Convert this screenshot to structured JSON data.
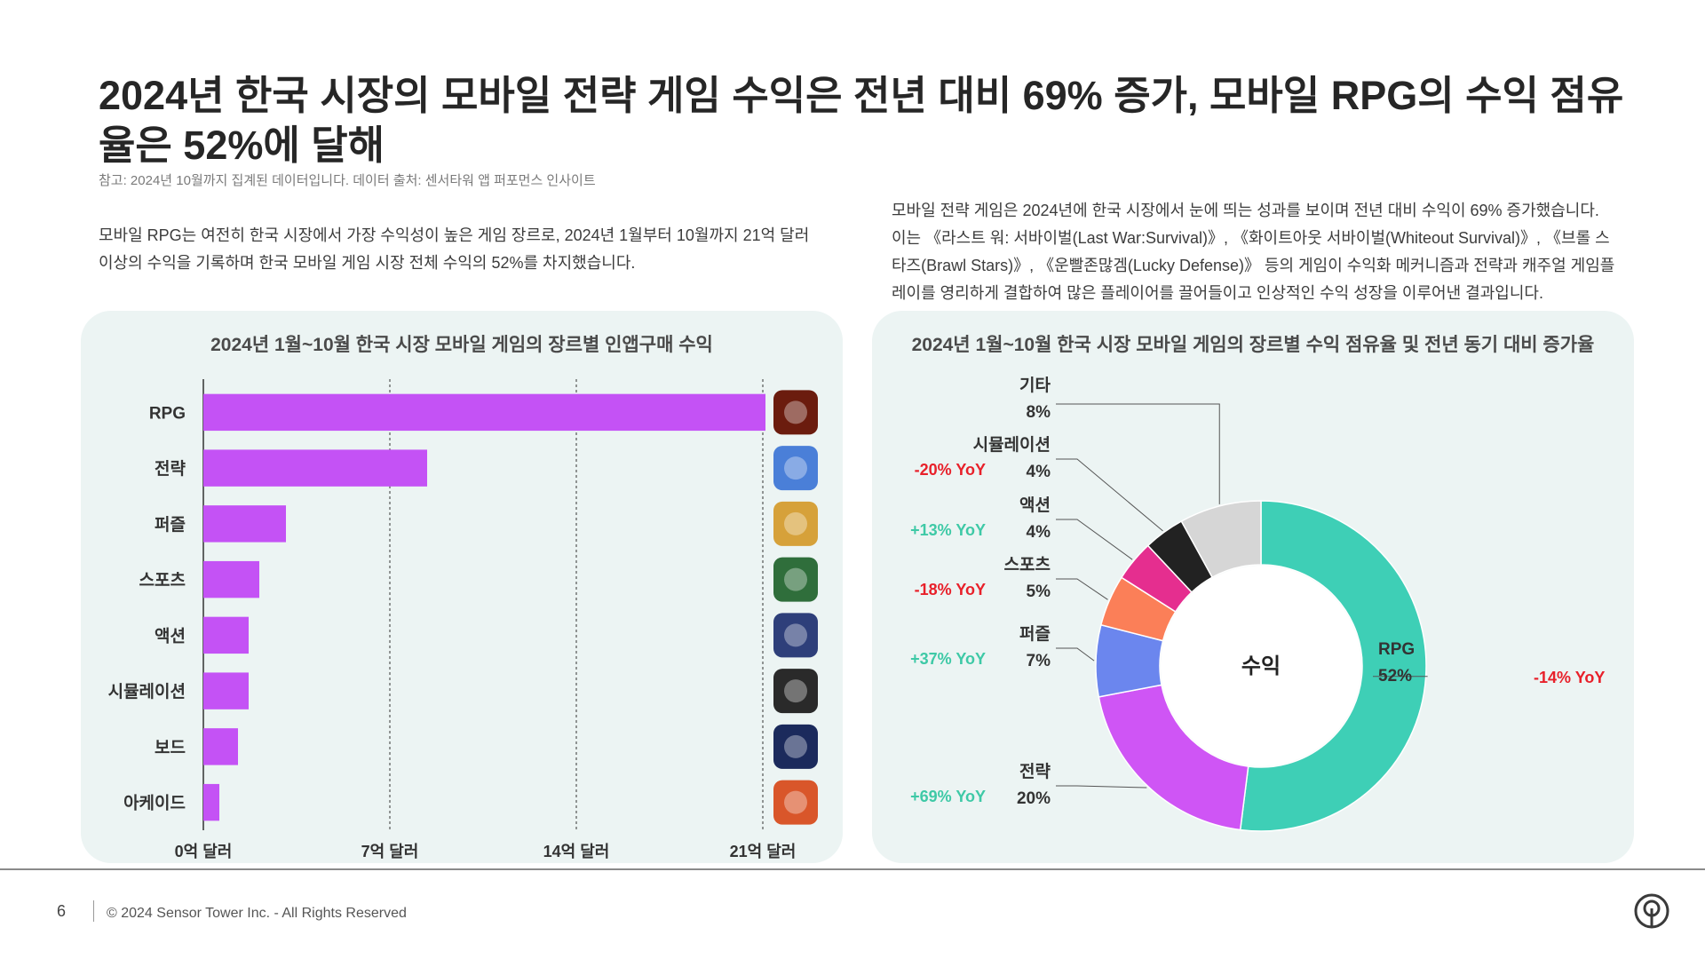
{
  "page": {
    "title": "2024년 한국 시장의 모바일 전략 게임 수익은 전년 대비 69% 증가, 모바일 RPG의 수익 점유율은 52%에 달해",
    "note": "참고: 2024년 10월까지 집계된 데이터입니다. 데이터 출처: 센서타워 앱 퍼포먼스 인사이트",
    "paragraph_left": "모바일 RPG는 여전히 한국 시장에서 가장 수익성이 높은 게임 장르로, 2024년 1월부터 10월까지 21억 달러 이상의 수익을 기록하며 한국 모바일 게임 시장 전체 수익의 52%를 차지했습니다.",
    "paragraph_right": "모바일 전략 게임은 2024년에 한국 시장에서 눈에 띄는 성과를 보이며 전년 대비 수익이 69% 증가했습니다. 이는 《라스트 워: 서바이벌(Last War:Survival)》, 《화이트아웃 서바이벌(Whiteout Survival)》, 《브롤 스타즈(Brawl Stars)》, 《운빨존많겜(Lucky Defense)》 등의 게임이 수익화 메커니즘과 전략과 캐주얼 게임플레이를 영리하게 결합하여 많은 플레이어를 끌어들이고 인상적인 수익 성장을 이루어낸 결과입니다.",
    "page_number": "6",
    "copyright": "© 2024 Sensor Tower Inc. - All Rights Reserved",
    "colors": {
      "bar": "#c452f5",
      "panel_bg": "#ecf4f3",
      "negative_yoy": "#e8202a",
      "positive_yoy": "#3ec9a6"
    }
  },
  "chart_data": [
    {
      "type": "bar",
      "orientation": "horizontal",
      "title": "2024년 1월~10월 한국 시장 모바일 게임의 장르별 인앱구매 수익",
      "categories": [
        "RPG",
        "전략",
        "퍼즐",
        "스포츠",
        "액션",
        "시뮬레이션",
        "보드",
        "아케이드"
      ],
      "values": [
        2.11,
        0.84,
        0.31,
        0.21,
        0.17,
        0.17,
        0.13,
        0.06
      ],
      "unit": "십억 달러",
      "xlim": [
        0,
        2.1
      ],
      "xticks": [
        0,
        0.7,
        1.4,
        2.1
      ],
      "xtick_labels": [
        "0억 달러",
        "7억 달러",
        "14억 달러",
        "21억 달러"
      ],
      "grid": "vertical dashed",
      "icons": [
        "rpg-game-icon",
        "strategy-game-icon",
        "puzzle-game-icon",
        "sports-game-icon",
        "action-game-icon",
        "simulation-game-icon",
        "board-game-icon",
        "arcade-game-icon"
      ]
    },
    {
      "type": "pie",
      "variant": "donut",
      "title": "2024년 1월~10월 한국 시장 모바일 게임의 장르별 수익 점유율 및 전년 동기 대비 증가율",
      "center_label": "수익",
      "slices": [
        {
          "label": "RPG",
          "value": 52,
          "value_label": "52%",
          "yoy": "-14% YoY",
          "color": "#3ecfb6"
        },
        {
          "label": "전략",
          "value": 20,
          "value_label": "20%",
          "yoy": "+69% YoY",
          "color": "#cf55f5"
        },
        {
          "label": "퍼즐",
          "value": 7,
          "value_label": "7%",
          "yoy": "+37% YoY",
          "color": "#6b86ee"
        },
        {
          "label": "스포츠",
          "value": 5,
          "value_label": "5%",
          "yoy": "-18% YoY",
          "color": "#fb7f58"
        },
        {
          "label": "액션",
          "value": 4,
          "value_label": "4%",
          "yoy": "+13% YoY",
          "color": "#e52e8f"
        },
        {
          "label": "시뮬레이션",
          "value": 4,
          "value_label": "4%",
          "yoy": "-20% YoY",
          "color": "#222222"
        },
        {
          "label": "기타",
          "value": 8,
          "value_label": "8%",
          "yoy": "",
          "color": "#d6d6d6"
        }
      ]
    }
  ]
}
